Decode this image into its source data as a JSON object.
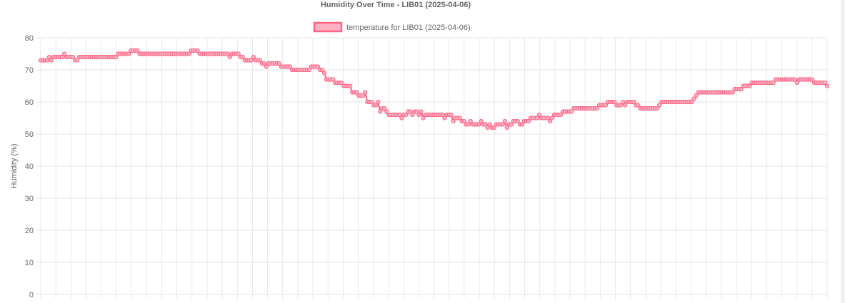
{
  "chart_data": {
    "type": "line",
    "title": "Humidity Over Time - LIB01 (2025-04-06)",
    "ylabel": "Humidity (%)",
    "xlabel": "",
    "ylim": [
      0,
      80
    ],
    "y_ticks": [
      0,
      10,
      20,
      30,
      40,
      50,
      60,
      70,
      80
    ],
    "grid": true,
    "legend_position": "top-center",
    "series": [
      {
        "name": "temperature for LIB01 (2025-04-06)",
        "color": "#ff6384",
        "fill": "#ffb1c1",
        "values": [
          73,
          73,
          73,
          73,
          74,
          73,
          74,
          74,
          74,
          74,
          74,
          75,
          74,
          74,
          74,
          74,
          73,
          73,
          74,
          74,
          74,
          74,
          74,
          74,
          74,
          74,
          74,
          74,
          74,
          74,
          74,
          74,
          74,
          74,
          74,
          74,
          75,
          75,
          75,
          75,
          75,
          75,
          76,
          76,
          76,
          76,
          75,
          75,
          75,
          75,
          75,
          75,
          75,
          75,
          75,
          75,
          75,
          75,
          75,
          75,
          75,
          75,
          75,
          75,
          75,
          75,
          75,
          75,
          75,
          75,
          76,
          76,
          76,
          76,
          75,
          75,
          75,
          75,
          75,
          75,
          75,
          75,
          75,
          75,
          75,
          75,
          75,
          75,
          74,
          75,
          75,
          75,
          75,
          74,
          74,
          73,
          73,
          73,
          73,
          74,
          73,
          73,
          73,
          72,
          72,
          71,
          72,
          72,
          72,
          72,
          72,
          72,
          71,
          71,
          71,
          71,
          71,
          70,
          70,
          70,
          70,
          70,
          70,
          70,
          70,
          70,
          71,
          71,
          71,
          71,
          70,
          70,
          69,
          67,
          67,
          67,
          67,
          66,
          66,
          66,
          66,
          65,
          65,
          65,
          65,
          63,
          63,
          63,
          62,
          62,
          62,
          63,
          60,
          60,
          60,
          59,
          59,
          60,
          57,
          58,
          58,
          57,
          56,
          56,
          56,
          56,
          56,
          56,
          55,
          56,
          56,
          57,
          57,
          56,
          57,
          57,
          56,
          57,
          55,
          56,
          56,
          56,
          56,
          56,
          56,
          56,
          56,
          56,
          55,
          56,
          56,
          56,
          54,
          55,
          55,
          55,
          54,
          54,
          53,
          53,
          54,
          53,
          53,
          53,
          53,
          54,
          53,
          53,
          52,
          53,
          52,
          52,
          53,
          53,
          53,
          53,
          54,
          52,
          53,
          53,
          54,
          54,
          54,
          53,
          53,
          54,
          54,
          54,
          55,
          55,
          55,
          55,
          56,
          55,
          55,
          55,
          55,
          54,
          55,
          56,
          56,
          56,
          56,
          57,
          57,
          57,
          57,
          57,
          58,
          58,
          58,
          58,
          58,
          58,
          58,
          58,
          58,
          58,
          58,
          58,
          59,
          59,
          59,
          59,
          60,
          60,
          60,
          60,
          59,
          59,
          59,
          60,
          59,
          60,
          60,
          60,
          60,
          59,
          59,
          58,
          58,
          58,
          58,
          58,
          58,
          58,
          58,
          58,
          59,
          60,
          60,
          60,
          60,
          60,
          60,
          60,
          60,
          60,
          60,
          60,
          60,
          60,
          60,
          60,
          61,
          62,
          63,
          63,
          63,
          63,
          63,
          63,
          63,
          63,
          63,
          63,
          63,
          63,
          63,
          63,
          63,
          63,
          63,
          64,
          64,
          64,
          64,
          65,
          65,
          65,
          65,
          66,
          66,
          66,
          66,
          66,
          66,
          66,
          66,
          66,
          66,
          66,
          67,
          67,
          67,
          67,
          67,
          67,
          67,
          67,
          67,
          67,
          66,
          67,
          67,
          67,
          67,
          67,
          67,
          67,
          66,
          66,
          66,
          66,
          66,
          66,
          65
        ]
      }
    ]
  }
}
